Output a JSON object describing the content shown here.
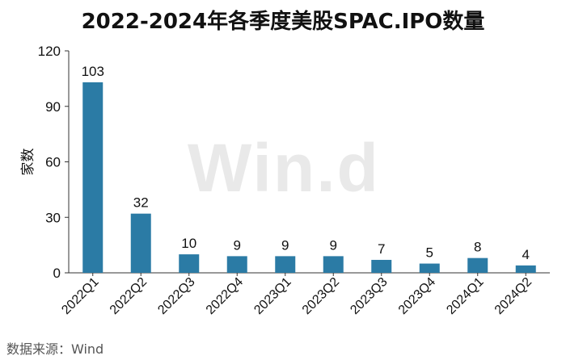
{
  "chart_data": {
    "type": "bar",
    "title": "2022-2024年各季度美股SPAC.IPO数量",
    "categories": [
      "2022Q1",
      "2022Q2",
      "2022Q3",
      "2022Q4",
      "2023Q1",
      "2023Q2",
      "2023Q3",
      "2023Q4",
      "2024Q1",
      "2024Q2"
    ],
    "values": [
      103,
      32,
      10,
      9,
      9,
      9,
      7,
      5,
      8,
      4
    ],
    "data_labels": [
      "103",
      "32",
      "10",
      "9",
      "9",
      "9",
      "7",
      "5",
      "8",
      "4"
    ],
    "ylabel": "家数",
    "xlabel": "",
    "ylim": [
      0,
      120
    ],
    "yticks": [
      0,
      30,
      60,
      90,
      120
    ],
    "ytick_labels": [
      "0",
      "30",
      "60",
      "90",
      "120"
    ],
    "grid": false,
    "bar_color": "#2b7ba5",
    "watermark": "Win.d",
    "source": "数据来源：Wind"
  }
}
